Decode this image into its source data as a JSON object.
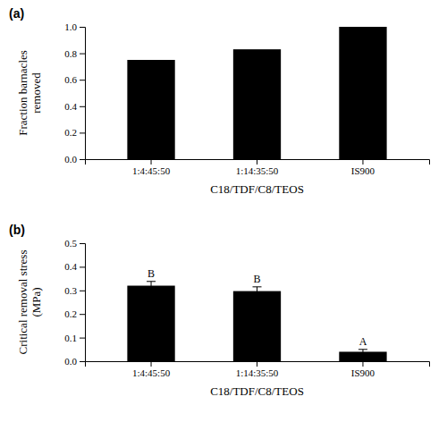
{
  "chart_data": [
    {
      "type": "bar",
      "title": "(a)",
      "categories": [
        "1:4:45:50",
        "1:14:35:50",
        "IS900"
      ],
      "values": [
        0.75,
        0.83,
        1.0
      ],
      "color": "#000000",
      "xlabel": "C18/TDF/C8/TEOS",
      "ylabel": "Fraction barnacles\nremoved",
      "ylim": [
        0.0,
        1.0
      ],
      "yticks": [
        {
          "value": 0.0,
          "label": "0.0"
        },
        0.2,
        0.4,
        0.6,
        0.8,
        {
          "value": 1.0,
          "label": "1.0"
        }
      ]
    },
    {
      "type": "bar",
      "title": "(b)",
      "categories": [
        "1:4:45:50",
        "1:14:35:50",
        "IS900"
      ],
      "values": [
        0.32,
        0.297,
        0.04
      ],
      "errors": [
        0.018,
        0.018,
        0.01
      ],
      "annotations": [
        "B",
        "B",
        "A"
      ],
      "color": "#000000",
      "xlabel": "C18/TDF/C8/TEOS",
      "ylabel": "Critical removal stress\n(MPa)",
      "ylim": [
        0.0,
        0.5
      ],
      "yticks": [
        {
          "value": 0.0,
          "label": "0.0"
        },
        0.1,
        0.2,
        0.3,
        0.4,
        0.5
      ]
    }
  ]
}
